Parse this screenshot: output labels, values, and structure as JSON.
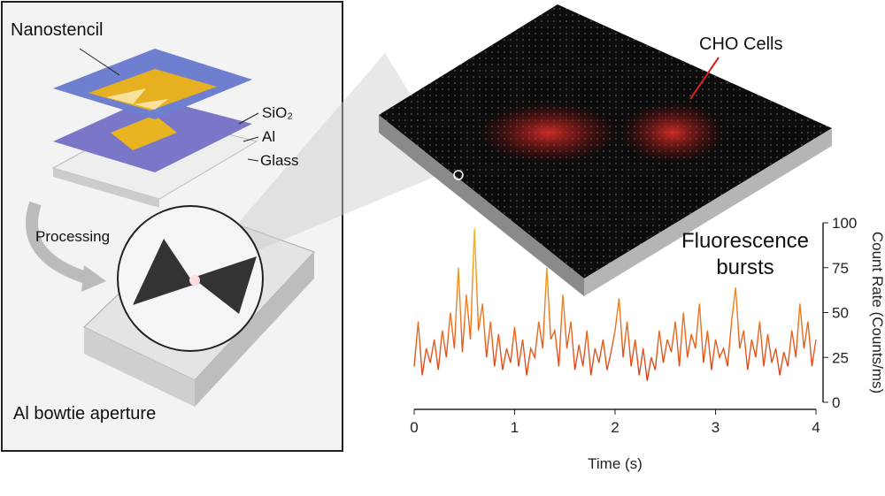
{
  "diagram": {
    "labels": [
      "Nanostencil",
      "SiO₂",
      "Al",
      "Glass",
      "Processing",
      "Al bowtie aperture",
      "CHO Cells"
    ]
  },
  "chart_data": {
    "type": "line",
    "annotation": "Fluorescence bursts",
    "x_label": "Time (s)",
    "y_label": "Count Rate (Counts/ms)",
    "xlim": [
      0,
      4
    ],
    "xticks": [
      0,
      1,
      2,
      3,
      4
    ],
    "ylim": [
      0,
      100
    ],
    "yticks": [
      0,
      25,
      50,
      75,
      100
    ],
    "y_axis_side": "right",
    "x": [
      0,
      0.04,
      0.08,
      0.12,
      0.16,
      0.2,
      0.24,
      0.28,
      0.32,
      0.36,
      0.4,
      0.44,
      0.48,
      0.52,
      0.56,
      0.6,
      0.64,
      0.68,
      0.72,
      0.76,
      0.8,
      0.84,
      0.88,
      0.92,
      0.96,
      1,
      1.04,
      1.08,
      1.12,
      1.16,
      1.2,
      1.24,
      1.28,
      1.32,
      1.36,
      1.4,
      1.44,
      1.48,
      1.52,
      1.56,
      1.6,
      1.64,
      1.68,
      1.72,
      1.76,
      1.8,
      1.84,
      1.88,
      1.92,
      1.96,
      2,
      2.04,
      2.08,
      2.12,
      2.16,
      2.2,
      2.24,
      2.28,
      2.32,
      2.36,
      2.4,
      2.44,
      2.48,
      2.52,
      2.56,
      2.6,
      2.64,
      2.68,
      2.72,
      2.76,
      2.8,
      2.84,
      2.88,
      2.92,
      2.96,
      3,
      3.04,
      3.08,
      3.12,
      3.16,
      3.2,
      3.24,
      3.28,
      3.32,
      3.36,
      3.4,
      3.44,
      3.48,
      3.52,
      3.56,
      3.6,
      3.64,
      3.68,
      3.72,
      3.76,
      3.8,
      3.84,
      3.88,
      3.92,
      3.96,
      4
    ],
    "series": [
      {
        "color": "#e8502a",
        "values": [
          20,
          45,
          15,
          30,
          22,
          35,
          18,
          40,
          25,
          50,
          30,
          75,
          28,
          60,
          35,
          97,
          40,
          55,
          25,
          45,
          20,
          38,
          18,
          30,
          22,
          42,
          20,
          35,
          15,
          30,
          25,
          45,
          30,
          75,
          35,
          40,
          20,
          60,
          30,
          45,
          18,
          32,
          20,
          40,
          15,
          30,
          22,
          35,
          18,
          28,
          40,
          58,
          25,
          45,
          20,
          35,
          15,
          30,
          12,
          25,
          18,
          40,
          22,
          35,
          28,
          45,
          20,
          50,
          25,
          38,
          30,
          55,
          22,
          40,
          18,
          35,
          25,
          30,
          20,
          45,
          64,
          30,
          40,
          18,
          35,
          25,
          45,
          20,
          38,
          22,
          30,
          15,
          28,
          20,
          40,
          25,
          55,
          30,
          45,
          20,
          35
        ]
      }
    ]
  }
}
